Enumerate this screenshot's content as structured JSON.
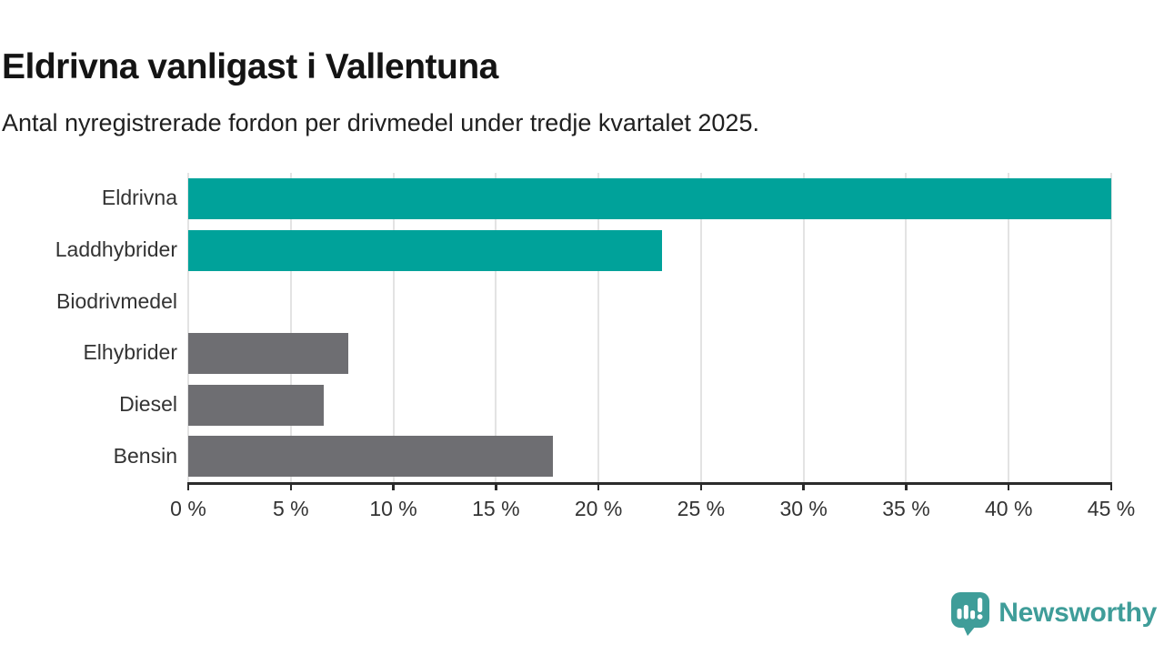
{
  "header": {
    "title": "Eldrivna vanligast i Vallentuna",
    "subtitle": "Antal nyregistrerade fordon per drivmedel under tredje kvartalet 2025."
  },
  "chart_data": {
    "type": "bar",
    "orientation": "horizontal",
    "title": "Eldrivna vanligast i Vallentuna",
    "subtitle": "Antal nyregistrerade fordon per drivmedel under tredje kvartalet 2025.",
    "categories": [
      "Eldrivna",
      "Laddhybrider",
      "Biodrivmedel",
      "Elhybrider",
      "Diesel",
      "Bensin"
    ],
    "values": [
      45.0,
      23.1,
      0,
      7.8,
      6.6,
      17.8
    ],
    "unit": "%",
    "bar_colors": [
      "#00a29a",
      "#00a29a",
      "#00a29a",
      "#6e6e72",
      "#6e6e72",
      "#6e6e72"
    ],
    "xlim": [
      0,
      45
    ],
    "x_ticks": [
      {
        "value": 0,
        "label": "0 %"
      },
      {
        "value": 5,
        "label": "5 %"
      },
      {
        "value": 10,
        "label": "10 %"
      },
      {
        "value": 15,
        "label": "15 %"
      },
      {
        "value": 20,
        "label": "20 %"
      },
      {
        "value": 25,
        "label": "25 %"
      },
      {
        "value": 30,
        "label": "30 %"
      },
      {
        "value": 35,
        "label": "35 %"
      },
      {
        "value": 40,
        "label": "40 %"
      },
      {
        "value": 45,
        "label": "45 %"
      }
    ],
    "grid": true,
    "legend": "none"
  },
  "colors": {
    "highlight": "#00a29a",
    "neutral": "#6e6e72",
    "gridline": "#e3e3e3",
    "axis": "#2b2b2b",
    "logo_teal": "#3f9d99"
  },
  "branding": {
    "logo_text": "Newsworthy",
    "logo_icon": "newsworthy-speech-bubble-chart-icon"
  }
}
